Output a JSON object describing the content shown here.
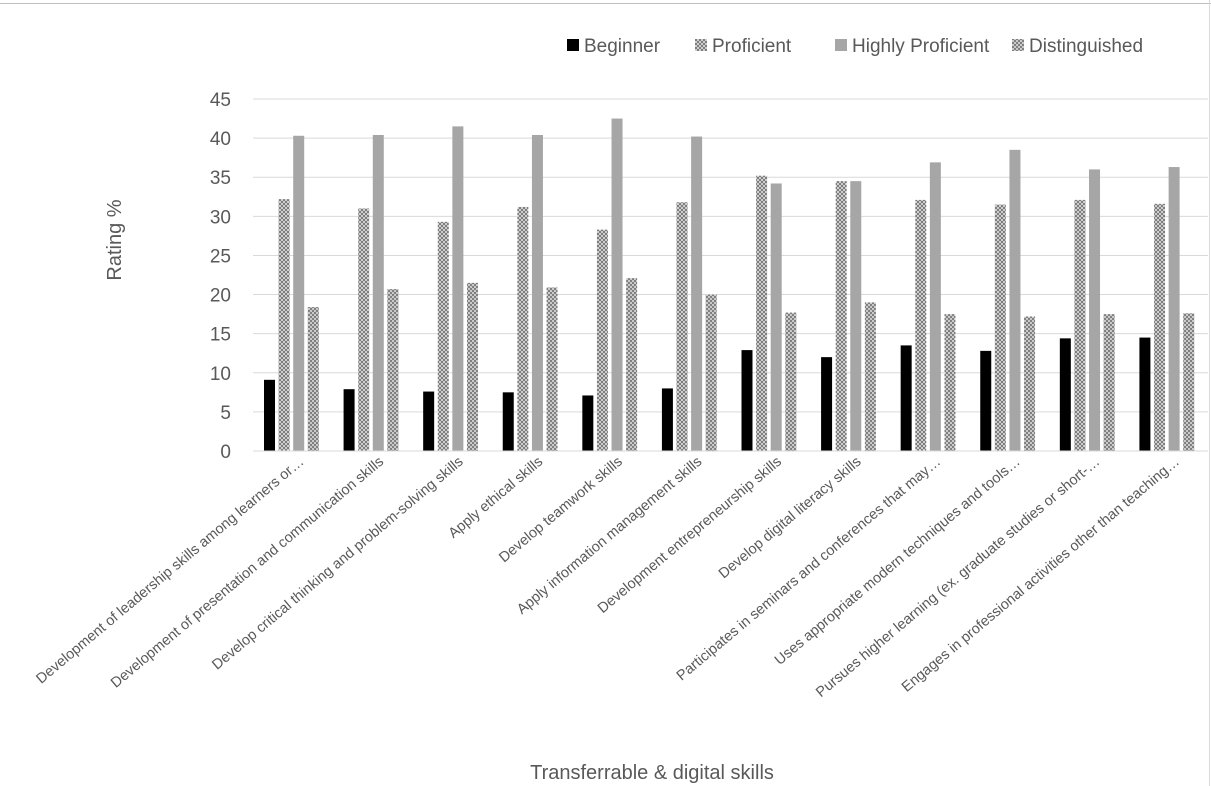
{
  "chart_data": {
    "type": "bar",
    "title": "",
    "xlabel": "Transferrable & digital skills",
    "ylabel": "Rating %",
    "ylim": [
      0,
      45
    ],
    "yticks": [
      0,
      5,
      10,
      15,
      20,
      25,
      30,
      35,
      40,
      45
    ],
    "grid": true,
    "legend_position": "top-right",
    "categories": [
      "Development of leadership skills among learners or…",
      "Development of presentation and communication skills",
      "Develop critical thinking and problem-solving skills",
      "Apply ethical skills",
      "Develop teamwork skills",
      "Apply information management skills",
      "Development entrepreneurship skills",
      "Develop digital literacy skills",
      "Participates in seminars and conferences that may…",
      "Uses appropriate modern techniques and tools…",
      "Pursues higher learning (ex. graduate studies or short-…",
      "Engages in professional activities other than teaching…"
    ],
    "series": [
      {
        "name": "Beginner",
        "color": "#000000",
        "pattern": "solid",
        "values": [
          9.1,
          7.9,
          7.6,
          7.5,
          7.1,
          8.0,
          12.9,
          12.0,
          13.5,
          12.8,
          14.4,
          14.5
        ]
      },
      {
        "name": "Proficient",
        "color": "#a6a6a6",
        "pattern": "cross-hatch",
        "values": [
          32.2,
          31.0,
          29.3,
          31.2,
          28.3,
          31.8,
          35.2,
          34.5,
          32.1,
          31.5,
          32.1,
          31.6
        ]
      },
      {
        "name": "Highly Proficient",
        "color": "#a6a6a6",
        "pattern": "solid",
        "values": [
          40.3,
          40.4,
          41.5,
          40.4,
          42.5,
          40.2,
          34.2,
          34.5,
          36.9,
          38.5,
          36.0,
          36.3
        ]
      },
      {
        "name": "Distinguished",
        "color": "#a6a6a6",
        "pattern": "dots",
        "values": [
          18.4,
          20.7,
          21.5,
          20.9,
          22.1,
          20.0,
          17.7,
          19.0,
          17.5,
          17.2,
          17.5,
          17.6
        ]
      }
    ]
  }
}
